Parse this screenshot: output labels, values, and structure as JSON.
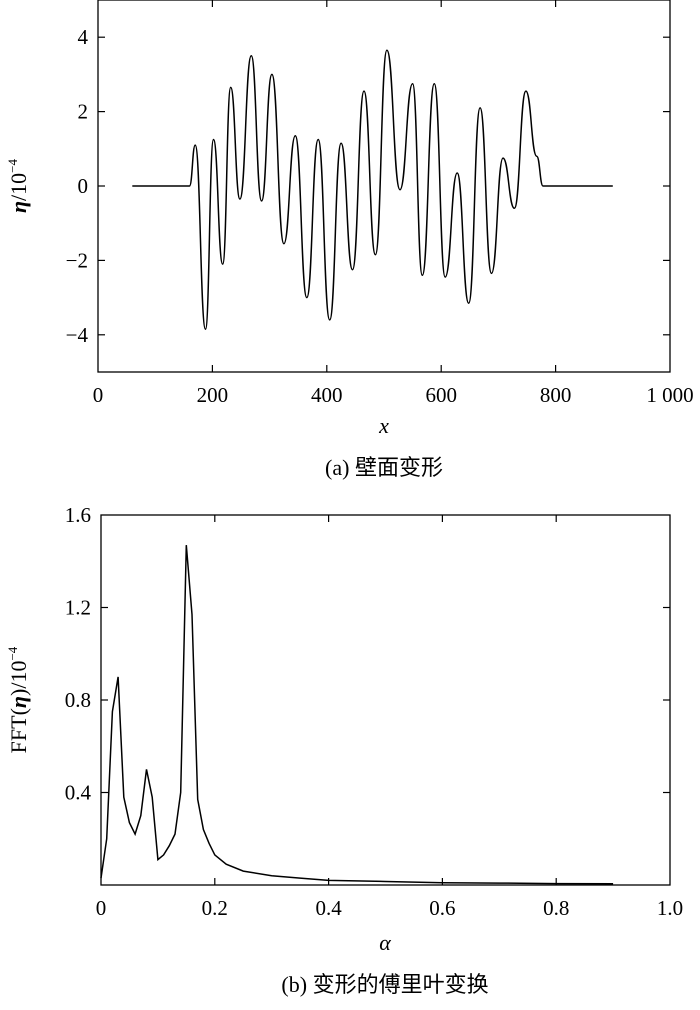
{
  "chart_data": [
    {
      "type": "line",
      "caption": "(a) 壁面变形",
      "xlabel": "x",
      "ylabel_symbol": "η",
      "ylabel_unit": "/10",
      "ylabel_exp": "−4",
      "xlim": [
        0,
        1000
      ],
      "ylim": [
        -5,
        5
      ],
      "xticks": [
        0,
        200,
        400,
        600,
        800,
        1000
      ],
      "xtick_labels": [
        "0",
        "200",
        "400",
        "600",
        "800",
        "1 000"
      ],
      "yticks": [
        -4,
        -2,
        0,
        2,
        4
      ],
      "ytick_labels": [
        "−4",
        "−2",
        "0",
        "2",
        "4"
      ],
      "grid": false,
      "series": [
        {
          "x": [
            60,
            160,
            170,
            188,
            202,
            218,
            232,
            248,
            268,
            286,
            304,
            325,
            345,
            365,
            385,
            405,
            425,
            445,
            465,
            485,
            505,
            528,
            550,
            567,
            588,
            607,
            628,
            648,
            668,
            688,
            708,
            728,
            748,
            767,
            778,
            780,
            900
          ],
          "y": [
            0,
            0,
            1.1,
            -3.85,
            1.25,
            -2.1,
            2.65,
            -0.35,
            3.5,
            -0.4,
            3.0,
            -1.55,
            1.35,
            -3.0,
            1.25,
            -3.6,
            1.15,
            -2.25,
            2.55,
            -1.85,
            3.65,
            -0.1,
            2.75,
            -2.4,
            2.75,
            -2.45,
            0.35,
            -3.15,
            2.1,
            -2.35,
            0.75,
            -0.6,
            2.55,
            0.8,
            0,
            0,
            0
          ]
        }
      ]
    },
    {
      "type": "line",
      "caption": "(b) 变形的傅里叶变换",
      "xlabel": "α",
      "ylabel_prefix": "FFT(",
      "ylabel_symbol": "η",
      "ylabel_suffix": ")/10",
      "ylabel_exp": "−4",
      "xlim": [
        0,
        1.0
      ],
      "ylim": [
        0,
        1.6
      ],
      "xticks": [
        0,
        0.2,
        0.4,
        0.6,
        0.8,
        1.0
      ],
      "xtick_labels": [
        "0",
        "0.2",
        "0.4",
        "0.6",
        "0.8",
        "1.0"
      ],
      "yticks": [
        0.4,
        0.8,
        1.2,
        1.6
      ],
      "ytick_labels": [
        "0.4",
        "0.8",
        "1.2",
        "1.6"
      ],
      "grid": false,
      "series": [
        {
          "x": [
            0,
            0.01,
            0.02,
            0.03,
            0.04,
            0.05,
            0.06,
            0.07,
            0.08,
            0.09,
            0.1,
            0.11,
            0.12,
            0.13,
            0.14,
            0.15,
            0.16,
            0.17,
            0.18,
            0.19,
            0.2,
            0.22,
            0.25,
            0.3,
            0.35,
            0.4,
            0.5,
            0.6,
            0.7,
            0.8,
            0.9
          ],
          "y": [
            0.03,
            0.2,
            0.75,
            0.9,
            0.38,
            0.27,
            0.22,
            0.3,
            0.5,
            0.38,
            0.11,
            0.13,
            0.17,
            0.22,
            0.4,
            1.47,
            1.17,
            0.37,
            0.24,
            0.18,
            0.13,
            0.09,
            0.06,
            0.04,
            0.03,
            0.02,
            0.015,
            0.01,
            0.008,
            0.006,
            0.005
          ]
        }
      ]
    }
  ]
}
